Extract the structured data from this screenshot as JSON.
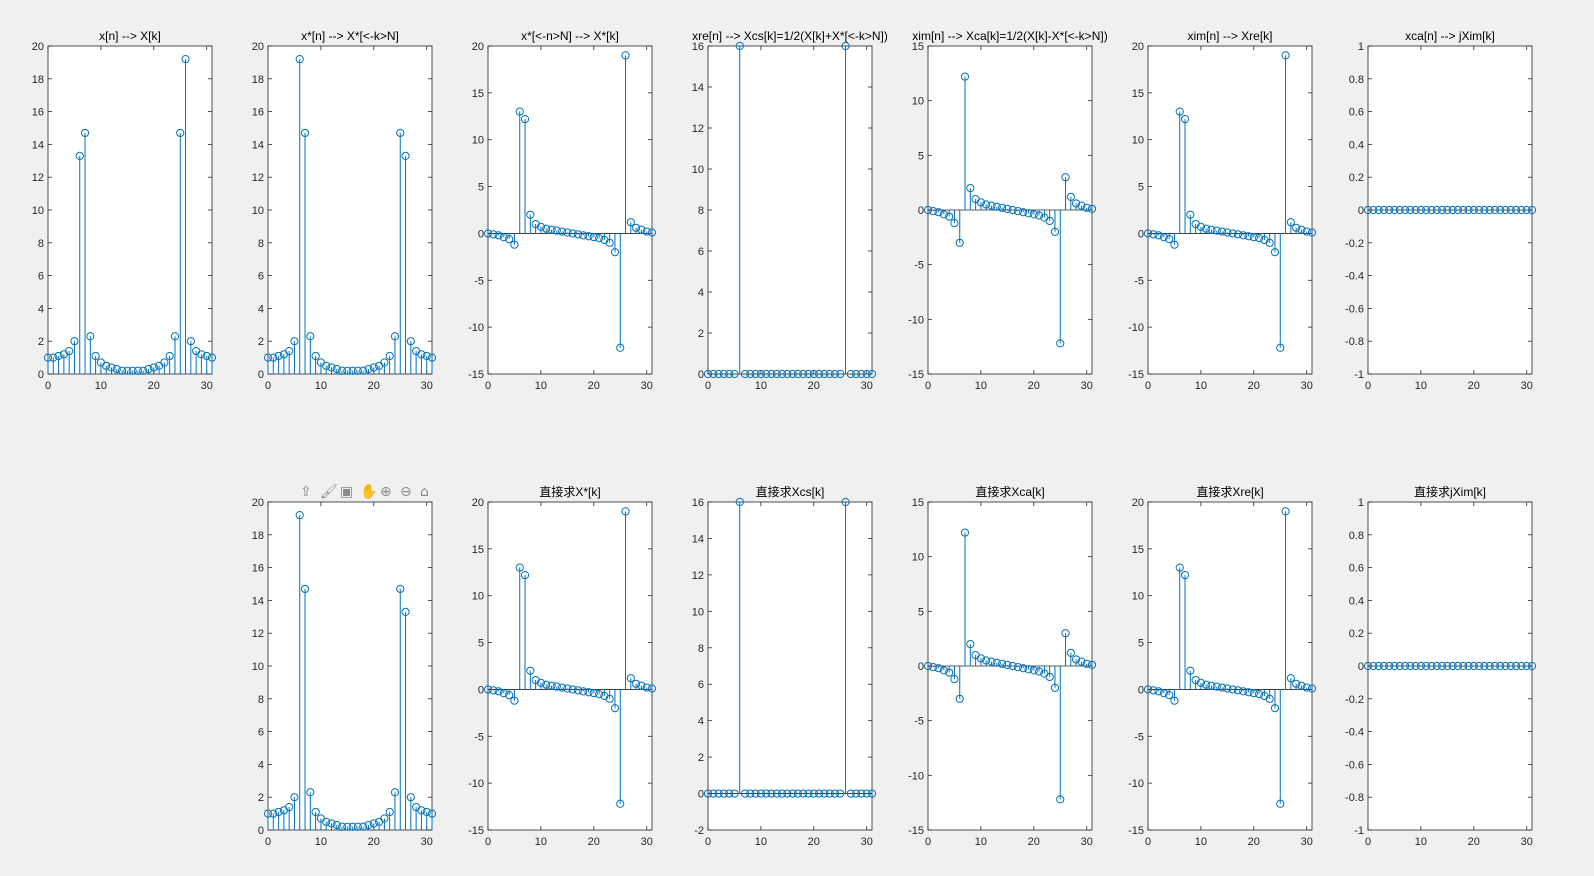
{
  "toolbar": {
    "icons": [
      "export-icon",
      "brush-icon",
      "data-tip-icon",
      "pan-icon",
      "zoom-in-icon",
      "zoom-out-icon",
      "home-icon"
    ],
    "glyphs": [
      "⇪",
      "🖌",
      "▣",
      "✋",
      "⊕",
      "⊖",
      "⌂"
    ]
  },
  "colors": {
    "stem": "#0072bd",
    "axes": "#262626",
    "background": "#f0f0f0"
  },
  "chart_data": [
    {
      "id": "r1c1",
      "type": "stem",
      "row": 0,
      "col": 0,
      "title": "x[n]  -->  X[k]",
      "xlim": [
        0,
        31
      ],
      "ylim": [
        0,
        20
      ],
      "xticks": [
        0,
        10,
        20,
        30
      ],
      "yticks": [
        0,
        2,
        4,
        6,
        8,
        10,
        12,
        14,
        16,
        18,
        20
      ],
      "values": [
        1.0,
        1.0,
        1.1,
        1.2,
        1.4,
        2.0,
        13.3,
        14.7,
        2.3,
        1.1,
        0.7,
        0.5,
        0.4,
        0.3,
        0.2,
        0.2,
        0.2,
        0.2,
        0.2,
        0.3,
        0.4,
        0.5,
        0.7,
        1.1,
        2.3,
        14.7,
        19.2,
        2.0,
        1.4,
        1.2,
        1.1,
        1.0
      ]
    },
    {
      "id": "r1c2",
      "type": "stem",
      "row": 0,
      "col": 1,
      "title": "x*[n]  -->  X*[<-k>N]",
      "xlim": [
        0,
        31
      ],
      "ylim": [
        0,
        20
      ],
      "xticks": [
        0,
        10,
        20,
        30
      ],
      "yticks": [
        0,
        2,
        4,
        6,
        8,
        10,
        12,
        14,
        16,
        18,
        20
      ],
      "values": [
        1.0,
        1.0,
        1.1,
        1.2,
        1.4,
        2.0,
        19.2,
        14.7,
        2.3,
        1.1,
        0.7,
        0.5,
        0.4,
        0.3,
        0.2,
        0.2,
        0.2,
        0.2,
        0.2,
        0.3,
        0.4,
        0.5,
        0.7,
        1.1,
        2.3,
        14.7,
        13.3,
        2.0,
        1.4,
        1.2,
        1.1,
        1.0
      ]
    },
    {
      "id": "r1c3",
      "type": "stem",
      "row": 0,
      "col": 2,
      "title": "x*[<-n>N]  -->  X*[k]",
      "xlim": [
        0,
        31
      ],
      "ylim": [
        -15,
        20
      ],
      "xticks": [
        0,
        10,
        20,
        30
      ],
      "yticks": [
        -15,
        -10,
        -5,
        0,
        5,
        10,
        15,
        20
      ],
      "values": [
        0.0,
        -0.1,
        -0.2,
        -0.4,
        -0.6,
        -1.2,
        13.0,
        12.2,
        2.0,
        1.0,
        0.7,
        0.5,
        0.4,
        0.3,
        0.2,
        0.1,
        0.0,
        -0.1,
        -0.2,
        -0.3,
        -0.4,
        -0.5,
        -0.7,
        -1.0,
        -2.0,
        -12.2,
        19.0,
        1.2,
        0.6,
        0.4,
        0.2,
        0.1
      ]
    },
    {
      "id": "r1c4",
      "type": "stem",
      "row": 0,
      "col": 3,
      "title": "xre[n]  -->  Xcs[k]=1/2(X[k]+X*[<-k>N])",
      "xlim": [
        0,
        31
      ],
      "ylim": [
        0,
        16
      ],
      "xticks": [
        0,
        10,
        20,
        30
      ],
      "yticks": [
        0,
        2,
        4,
        6,
        8,
        10,
        12,
        14,
        16
      ],
      "values": [
        0,
        0,
        0,
        0,
        0,
        0,
        16,
        0,
        0,
        0,
        0,
        0,
        0,
        0,
        0,
        0,
        0,
        0,
        0,
        0,
        0,
        0,
        0,
        0,
        0,
        0,
        16,
        0,
        0,
        0,
        0,
        0
      ]
    },
    {
      "id": "r1c5",
      "type": "stem",
      "row": 0,
      "col": 4,
      "title": "xim[n]  -->  Xca[k]=1/2(X[k]-X*[<-k>N])",
      "xlim": [
        0,
        31
      ],
      "ylim": [
        -15,
        15
      ],
      "xticks": [
        0,
        10,
        20,
        30
      ],
      "yticks": [
        -15,
        -10,
        -5,
        0,
        5,
        10,
        15
      ],
      "values": [
        0.0,
        -0.1,
        -0.2,
        -0.4,
        -0.6,
        -1.2,
        -3.0,
        12.2,
        2.0,
        1.0,
        0.7,
        0.5,
        0.4,
        0.3,
        0.2,
        0.1,
        0.0,
        -0.1,
        -0.2,
        -0.3,
        -0.4,
        -0.5,
        -0.7,
        -1.0,
        -2.0,
        -12.2,
        3.0,
        1.2,
        0.6,
        0.4,
        0.2,
        0.1
      ]
    },
    {
      "id": "r1c6",
      "type": "stem",
      "row": 0,
      "col": 5,
      "title": "xim[n]  -->  Xre[k]",
      "xlim": [
        0,
        31
      ],
      "ylim": [
        -15,
        20
      ],
      "xticks": [
        0,
        10,
        20,
        30
      ],
      "yticks": [
        -15,
        -10,
        -5,
        0,
        5,
        10,
        15,
        20
      ],
      "values": [
        0.0,
        -0.1,
        -0.2,
        -0.4,
        -0.6,
        -1.2,
        13.0,
        12.2,
        2.0,
        1.0,
        0.7,
        0.5,
        0.4,
        0.3,
        0.2,
        0.1,
        0.0,
        -0.1,
        -0.2,
        -0.3,
        -0.4,
        -0.5,
        -0.7,
        -1.0,
        -2.0,
        -12.2,
        19.0,
        1.2,
        0.6,
        0.4,
        0.2,
        0.1
      ]
    },
    {
      "id": "r1c7",
      "type": "stem",
      "row": 0,
      "col": 6,
      "title": "xca[n]  -->  jXim[k]",
      "xlim": [
        0,
        31
      ],
      "ylim": [
        -1,
        1
      ],
      "xticks": [
        0,
        10,
        20,
        30
      ],
      "yticks": [
        -1,
        -0.8,
        -0.6,
        -0.4,
        -0.2,
        0,
        0.2,
        0.4,
        0.6,
        0.8,
        1
      ],
      "values": [
        0,
        0,
        0,
        0,
        0,
        0,
        0,
        0,
        0,
        0,
        0,
        0,
        0,
        0,
        0,
        0,
        0,
        0,
        0,
        0,
        0,
        0,
        0,
        0,
        0,
        0,
        0,
        0,
        0,
        0,
        0,
        0
      ]
    },
    {
      "id": "r2c2",
      "type": "stem",
      "row": 1,
      "col": 1,
      "title": "",
      "xlim": [
        0,
        31
      ],
      "ylim": [
        0,
        20
      ],
      "xticks": [
        0,
        10,
        20,
        30
      ],
      "yticks": [
        0,
        2,
        4,
        6,
        8,
        10,
        12,
        14,
        16,
        18,
        20
      ],
      "values": [
        1.0,
        1.0,
        1.1,
        1.2,
        1.4,
        2.0,
        19.2,
        14.7,
        2.3,
        1.1,
        0.7,
        0.5,
        0.4,
        0.3,
        0.2,
        0.2,
        0.2,
        0.2,
        0.2,
        0.3,
        0.4,
        0.5,
        0.7,
        1.1,
        2.3,
        14.7,
        13.3,
        2.0,
        1.4,
        1.2,
        1.1,
        1.0
      ]
    },
    {
      "id": "r2c3",
      "type": "stem",
      "row": 1,
      "col": 2,
      "title": "直接求X*[k]",
      "xlim": [
        0,
        31
      ],
      "ylim": [
        -15,
        20
      ],
      "xticks": [
        0,
        10,
        20,
        30
      ],
      "yticks": [
        -15,
        -10,
        -5,
        0,
        5,
        10,
        15,
        20
      ],
      "values": [
        0.0,
        -0.1,
        -0.2,
        -0.4,
        -0.6,
        -1.2,
        13.0,
        12.2,
        2.0,
        1.0,
        0.7,
        0.5,
        0.4,
        0.3,
        0.2,
        0.1,
        0.0,
        -0.1,
        -0.2,
        -0.3,
        -0.4,
        -0.5,
        -0.7,
        -1.0,
        -2.0,
        -12.2,
        19.0,
        1.2,
        0.6,
        0.4,
        0.2,
        0.1
      ]
    },
    {
      "id": "r2c4",
      "type": "stem",
      "row": 1,
      "col": 3,
      "title": "直接求Xcs[k]",
      "xlim": [
        0,
        31
      ],
      "ylim": [
        -2,
        16
      ],
      "xticks": [
        0,
        10,
        20,
        30
      ],
      "yticks": [
        -2,
        0,
        2,
        4,
        6,
        8,
        10,
        12,
        14,
        16
      ],
      "values": [
        0,
        0,
        0,
        0,
        0,
        0,
        16,
        0,
        0,
        0,
        0,
        0,
        0,
        0,
        0,
        0,
        0,
        0,
        0,
        0,
        0,
        0,
        0,
        0,
        0,
        0,
        16,
        0,
        0,
        0,
        0,
        0
      ]
    },
    {
      "id": "r2c5",
      "type": "stem",
      "row": 1,
      "col": 4,
      "title": "直接求Xca[k]",
      "xlim": [
        0,
        31
      ],
      "ylim": [
        -15,
        15
      ],
      "xticks": [
        0,
        10,
        20,
        30
      ],
      "yticks": [
        -15,
        -10,
        -5,
        0,
        5,
        10,
        15
      ],
      "values": [
        0.0,
        -0.1,
        -0.2,
        -0.4,
        -0.6,
        -1.2,
        -3.0,
        12.2,
        2.0,
        1.0,
        0.7,
        0.5,
        0.4,
        0.3,
        0.2,
        0.1,
        0.0,
        -0.1,
        -0.2,
        -0.3,
        -0.4,
        -0.5,
        -0.7,
        -1.0,
        -2.0,
        -12.2,
        3.0,
        1.2,
        0.6,
        0.4,
        0.2,
        0.1
      ]
    },
    {
      "id": "r2c6",
      "type": "stem",
      "row": 1,
      "col": 5,
      "title": "直接求Xre[k]",
      "xlim": [
        0,
        31
      ],
      "ylim": [
        -15,
        20
      ],
      "xticks": [
        0,
        10,
        20,
        30
      ],
      "yticks": [
        -15,
        -10,
        -5,
        0,
        5,
        10,
        15,
        20
      ],
      "values": [
        0.0,
        -0.1,
        -0.2,
        -0.4,
        -0.6,
        -1.2,
        13.0,
        12.2,
        2.0,
        1.0,
        0.7,
        0.5,
        0.4,
        0.3,
        0.2,
        0.1,
        0.0,
        -0.1,
        -0.2,
        -0.3,
        -0.4,
        -0.5,
        -0.7,
        -1.0,
        -2.0,
        -12.2,
        19.0,
        1.2,
        0.6,
        0.4,
        0.2,
        0.1
      ]
    },
    {
      "id": "r2c7",
      "type": "stem",
      "row": 1,
      "col": 6,
      "title": "直接求jXim[k]",
      "xlim": [
        0,
        31
      ],
      "ylim": [
        -1,
        1
      ],
      "xticks": [
        0,
        10,
        20,
        30
      ],
      "yticks": [
        -1,
        -0.8,
        -0.6,
        -0.4,
        -0.2,
        0,
        0.2,
        0.4,
        0.6,
        0.8,
        1
      ],
      "values": [
        0,
        0,
        0,
        0,
        0,
        0,
        0,
        0,
        0,
        0,
        0,
        0,
        0,
        0,
        0,
        0,
        0,
        0,
        0,
        0,
        0,
        0,
        0,
        0,
        0,
        0,
        0,
        0,
        0,
        0,
        0,
        0
      ]
    }
  ]
}
